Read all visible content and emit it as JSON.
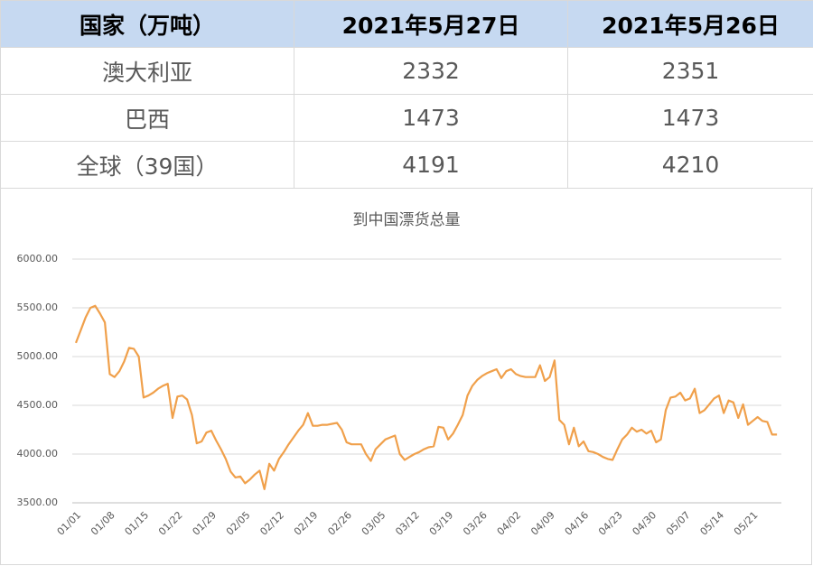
{
  "table": {
    "header": [
      "国家（万吨）",
      "2021年5月27日",
      "2021年5月26日"
    ],
    "rows": [
      [
        "澳大利亚",
        2332,
        2351
      ],
      [
        "巴西",
        1473,
        1473
      ],
      [
        "全球（39国）",
        4191,
        4210
      ]
    ]
  },
  "chart_data": {
    "type": "line",
    "title": "到中国漂货总量",
    "categories": [
      "01/01",
      null,
      null,
      null,
      null,
      null,
      null,
      "01/08",
      null,
      null,
      null,
      null,
      null,
      null,
      "01/15",
      null,
      null,
      null,
      null,
      null,
      null,
      "01/22",
      null,
      null,
      null,
      null,
      null,
      null,
      "01/29",
      null,
      null,
      null,
      null,
      null,
      null,
      "02/05",
      null,
      null,
      null,
      null,
      null,
      null,
      "02/12",
      null,
      null,
      null,
      null,
      null,
      null,
      "02/19",
      null,
      null,
      null,
      null,
      null,
      null,
      "02/26",
      null,
      null,
      null,
      null,
      null,
      null,
      "03/05",
      null,
      null,
      null,
      null,
      null,
      null,
      "03/12",
      null,
      null,
      null,
      null,
      null,
      null,
      "03/19",
      null,
      null,
      null,
      null,
      null,
      null,
      "03/26",
      null,
      null,
      null,
      null,
      null,
      null,
      "04/02",
      null,
      null,
      null,
      null,
      null,
      null,
      "04/09",
      null,
      null,
      null,
      null,
      null,
      null,
      "04/16",
      null,
      null,
      null,
      null,
      null,
      null,
      "04/23",
      null,
      null,
      null,
      null,
      null,
      null,
      "04/30",
      null,
      null,
      null,
      null,
      null,
      null,
      "05/07",
      null,
      null,
      null,
      null,
      null,
      null,
      "05/14",
      null,
      null,
      null,
      null,
      null,
      null,
      "05/21",
      null,
      null,
      null,
      null,
      null
    ],
    "series": [
      {
        "name": "到中国漂货总量",
        "color": "#f0a04b",
        "values": [
          5140,
          5270,
          5400,
          5500,
          5520,
          5440,
          5350,
          4820,
          4790,
          4850,
          4950,
          5090,
          5080,
          5000,
          4580,
          4600,
          4630,
          4670,
          4700,
          4720,
          4370,
          4590,
          4600,
          4560,
          4400,
          4110,
          4130,
          4220,
          4240,
          4140,
          4050,
          3950,
          3820,
          3760,
          3770,
          3700,
          3740,
          3790,
          3830,
          3640,
          3900,
          3830,
          3950,
          4020,
          4100,
          4170,
          4240,
          4300,
          4420,
          4290,
          4290,
          4300,
          4300,
          4310,
          4320,
          4250,
          4120,
          4100,
          4100,
          4100,
          4000,
          3930,
          4050,
          4100,
          4150,
          4170,
          4190,
          4000,
          3940,
          3970,
          4000,
          4020,
          4050,
          4070,
          4080,
          4280,
          4270,
          4150,
          4210,
          4300,
          4400,
          4600,
          4700,
          4760,
          4800,
          4830,
          4850,
          4870,
          4780,
          4850,
          4870,
          4820,
          4800,
          4790,
          4790,
          4790,
          4910,
          4750,
          4790,
          4960,
          4350,
          4300,
          4100,
          4270,
          4080,
          4130,
          4030,
          4020,
          4000,
          3970,
          3950,
          3940,
          4050,
          4150,
          4200,
          4270,
          4230,
          4250,
          4210,
          4240,
          4120,
          4150,
          4450,
          4580,
          4590,
          4630,
          4550,
          4570,
          4670,
          4420,
          4450,
          4510,
          4570,
          4600,
          4420,
          4550,
          4530,
          4370,
          4510,
          4300,
          4340,
          4380,
          4340,
          4330,
          4200,
          4200
        ]
      }
    ],
    "ylim": [
      3500,
      6000
    ],
    "yticks": [
      {
        "value": 3500,
        "label": "3500.00"
      },
      {
        "value": 4000,
        "label": "4000.00"
      },
      {
        "value": 4500,
        "label": "4500.00"
      },
      {
        "value": 5000,
        "label": "5000.00"
      },
      {
        "value": 5500,
        "label": "5500.00"
      },
      {
        "value": 6000,
        "label": "6000.00"
      }
    ],
    "grid": true
  }
}
